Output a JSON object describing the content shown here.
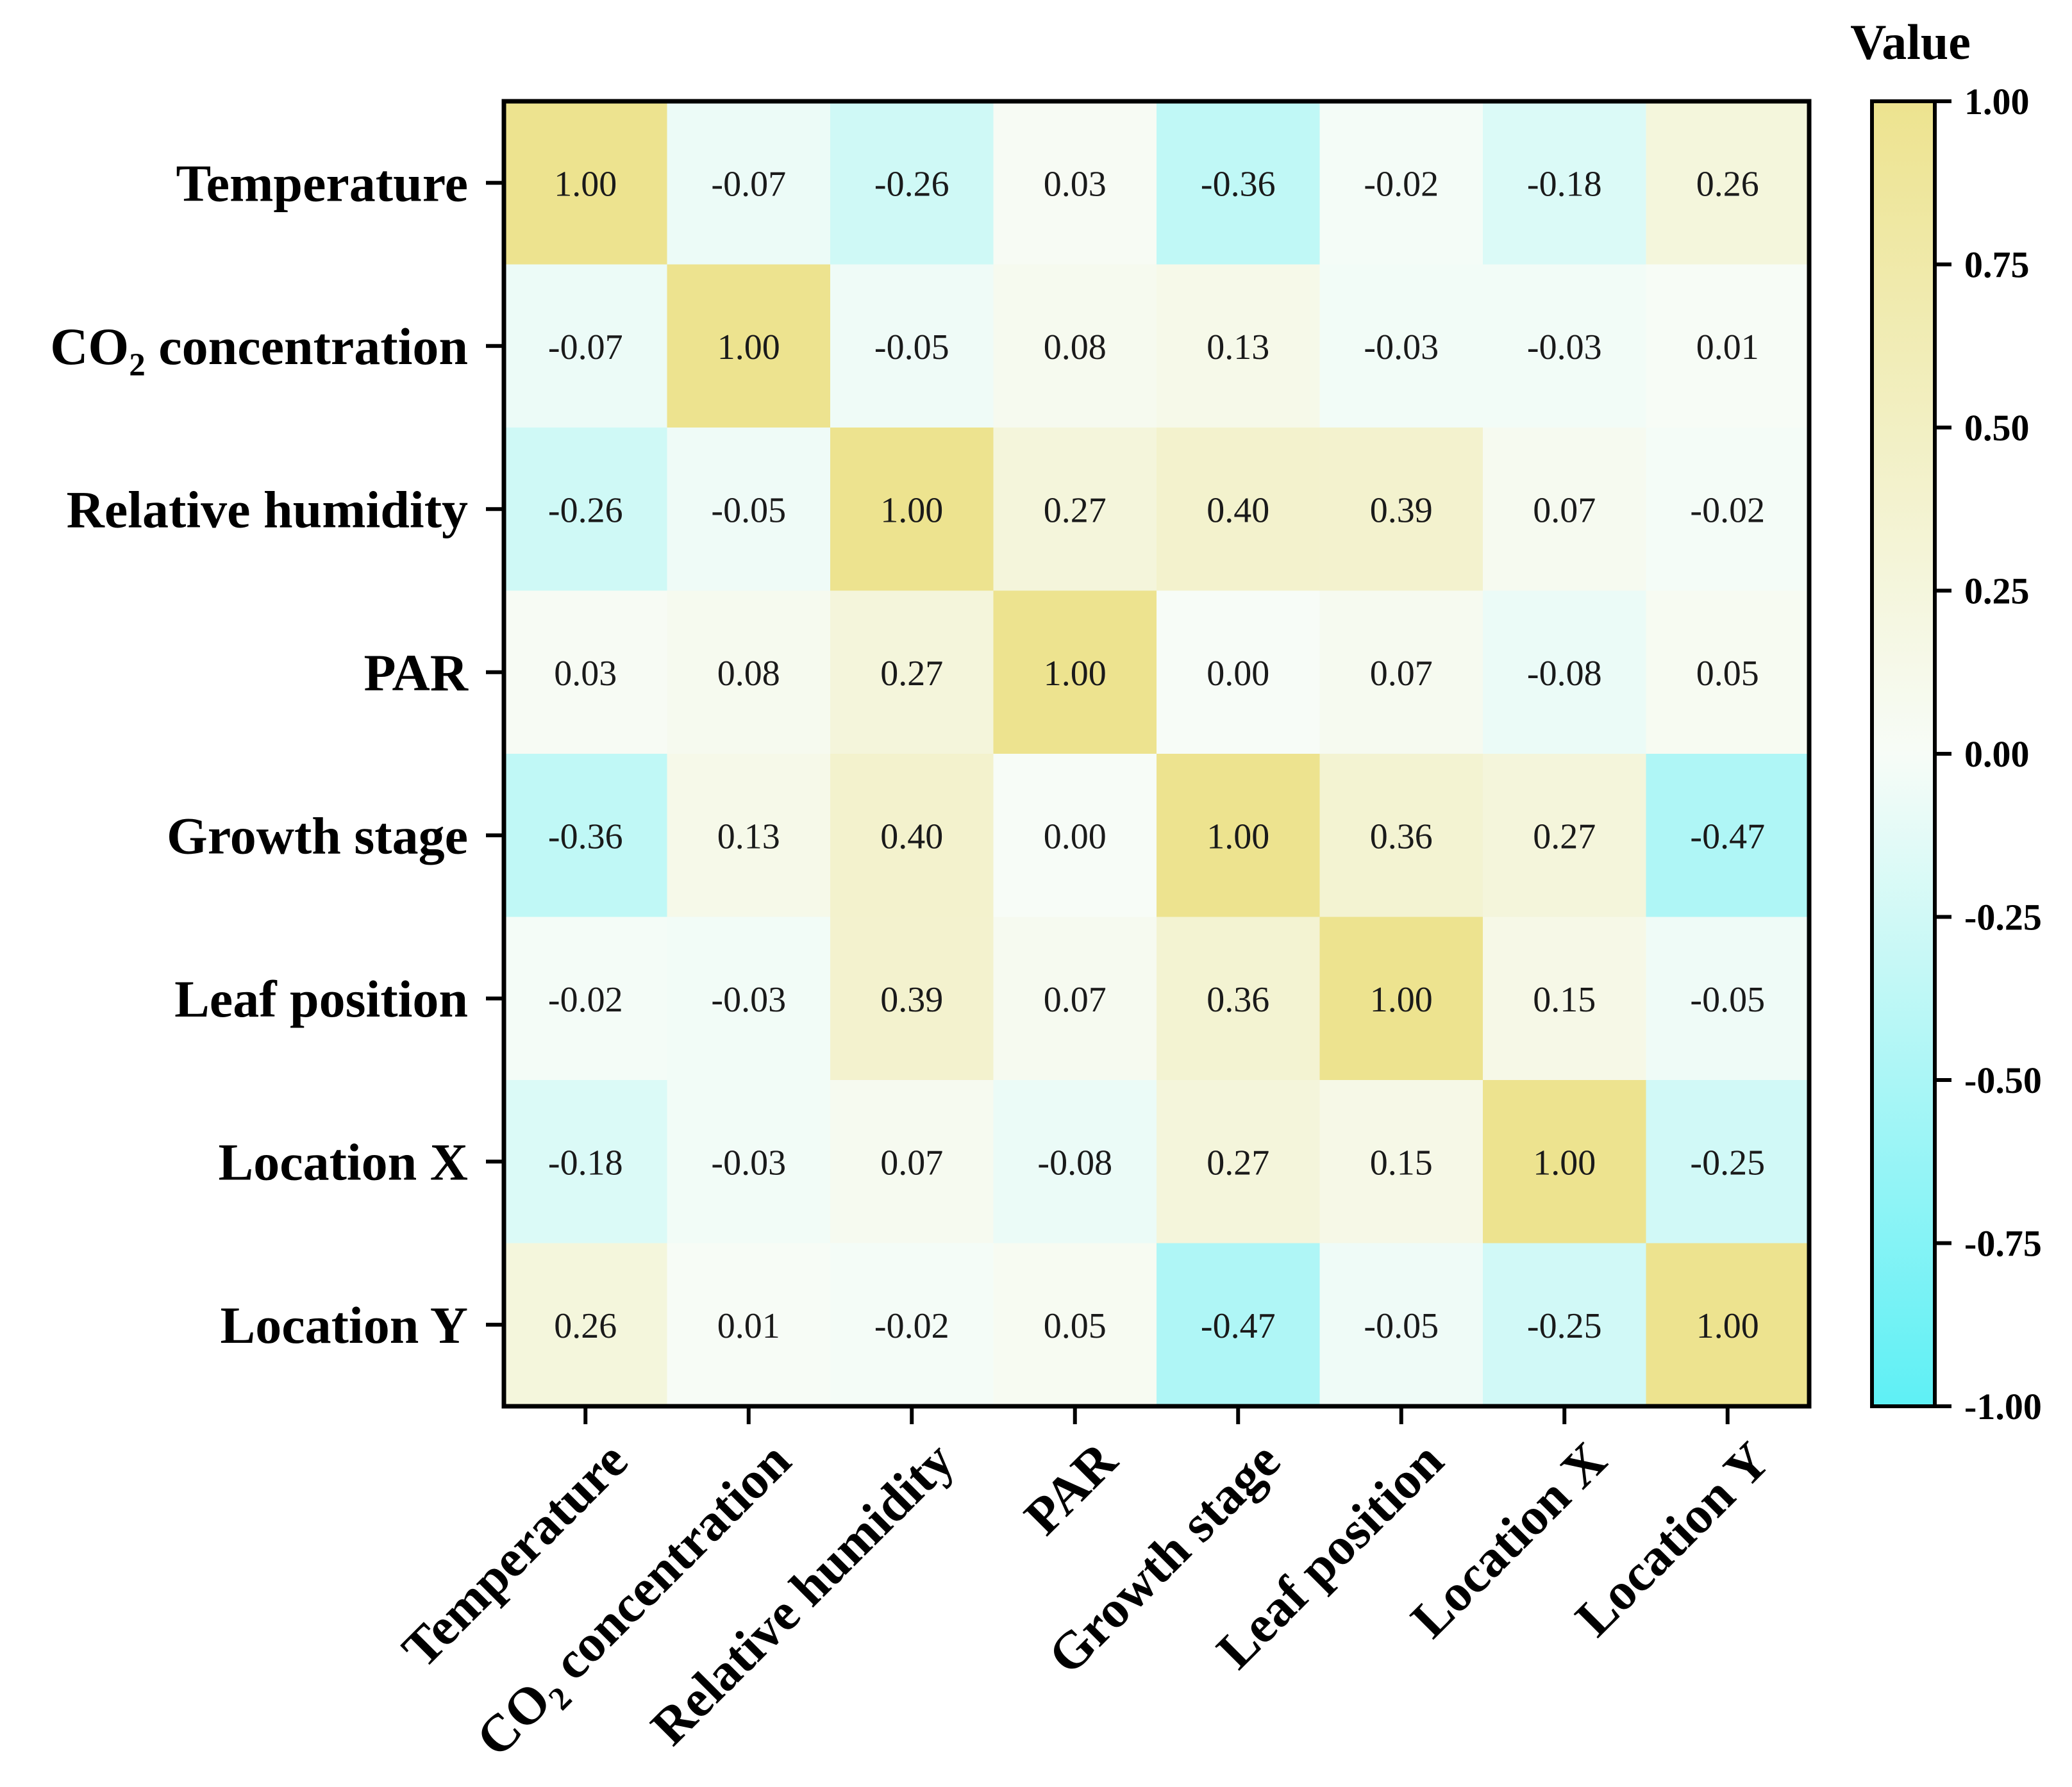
{
  "chart_data": {
    "type": "heatmap",
    "title": "",
    "variables": [
      {
        "pre": "Temperature",
        "sub": "",
        "post": ""
      },
      {
        "pre": "CO",
        "sub": "2",
        "post": " concentration"
      },
      {
        "pre": "Relative humidity",
        "sub": "",
        "post": ""
      },
      {
        "pre": "PAR",
        "sub": "",
        "post": ""
      },
      {
        "pre": "Growth stage",
        "sub": "",
        "post": ""
      },
      {
        "pre": "Leaf position",
        "sub": "",
        "post": ""
      },
      {
        "pre": "Location X",
        "sub": "",
        "post": ""
      },
      {
        "pre": "Location Y",
        "sub": "",
        "post": ""
      }
    ],
    "matrix": [
      [
        1.0,
        -0.07,
        -0.26,
        0.03,
        -0.36,
        -0.02,
        -0.18,
        0.26
      ],
      [
        -0.07,
        1.0,
        -0.05,
        0.08,
        0.13,
        -0.03,
        -0.03,
        0.01
      ],
      [
        -0.26,
        -0.05,
        1.0,
        0.27,
        0.4,
        0.39,
        0.07,
        -0.02
      ],
      [
        0.03,
        0.08,
        0.27,
        1.0,
        0.0,
        0.07,
        -0.08,
        0.05
      ],
      [
        -0.36,
        0.13,
        0.4,
        0.0,
        1.0,
        0.36,
        0.27,
        -0.47
      ],
      [
        -0.02,
        -0.03,
        0.39,
        0.07,
        0.36,
        1.0,
        0.15,
        -0.05
      ],
      [
        -0.18,
        -0.03,
        0.07,
        -0.08,
        0.27,
        0.15,
        1.0,
        -0.25
      ],
      [
        0.26,
        0.01,
        -0.02,
        0.05,
        -0.47,
        -0.05,
        -0.25,
        1.0
      ]
    ],
    "value_format_decimals": 2,
    "colorbar": {
      "title": "Value",
      "range": [
        -1.0,
        1.0
      ],
      "ticks": [
        "1.00",
        "0.75",
        "0.50",
        "0.25",
        "0.00",
        "-0.25",
        "-0.50",
        "-0.75",
        "-1.00"
      ],
      "colors": {
        "low": "#5ef0f5",
        "mid": "#f7fcf7",
        "high": "#ede38f"
      }
    }
  }
}
